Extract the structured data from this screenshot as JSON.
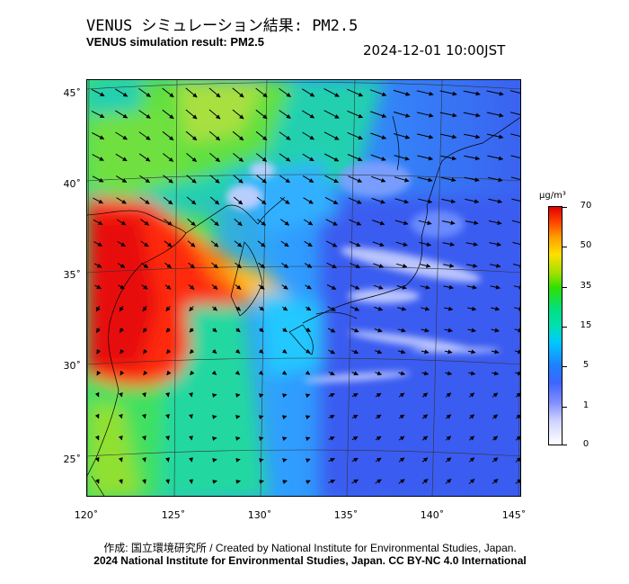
{
  "title_jp": "VENUS シミュレーション結果: PM2.5",
  "title_en": "VENUS simulation result: PM2.5",
  "timestamp": "2024-12-01 10:00JST",
  "lat_labels": [
    "45˚",
    "40˚",
    "35˚",
    "30˚",
    "25˚"
  ],
  "lon_labels": [
    "120˚",
    "125˚",
    "130˚",
    "135˚",
    "140˚",
    "145˚"
  ],
  "colorbar": {
    "unit": "μg/m³",
    "ticks": [
      "70",
      "50",
      "35",
      "15",
      "5",
      "1",
      "0"
    ],
    "colors": {
      "max": "#e00000",
      "high": "#ffa000",
      "mid": "#30e000",
      "low": "#00c8ff",
      "verylow": "#3d66ff",
      "min": "#ffffff"
    }
  },
  "credit_line1": "作成: 国立環境研究所 / Created by National Institute for Environmental Studies, Japan.",
  "credit_line2": "2024 National Institute for Environmental Studies, Japan. CC BY-NC 4.0 International"
}
